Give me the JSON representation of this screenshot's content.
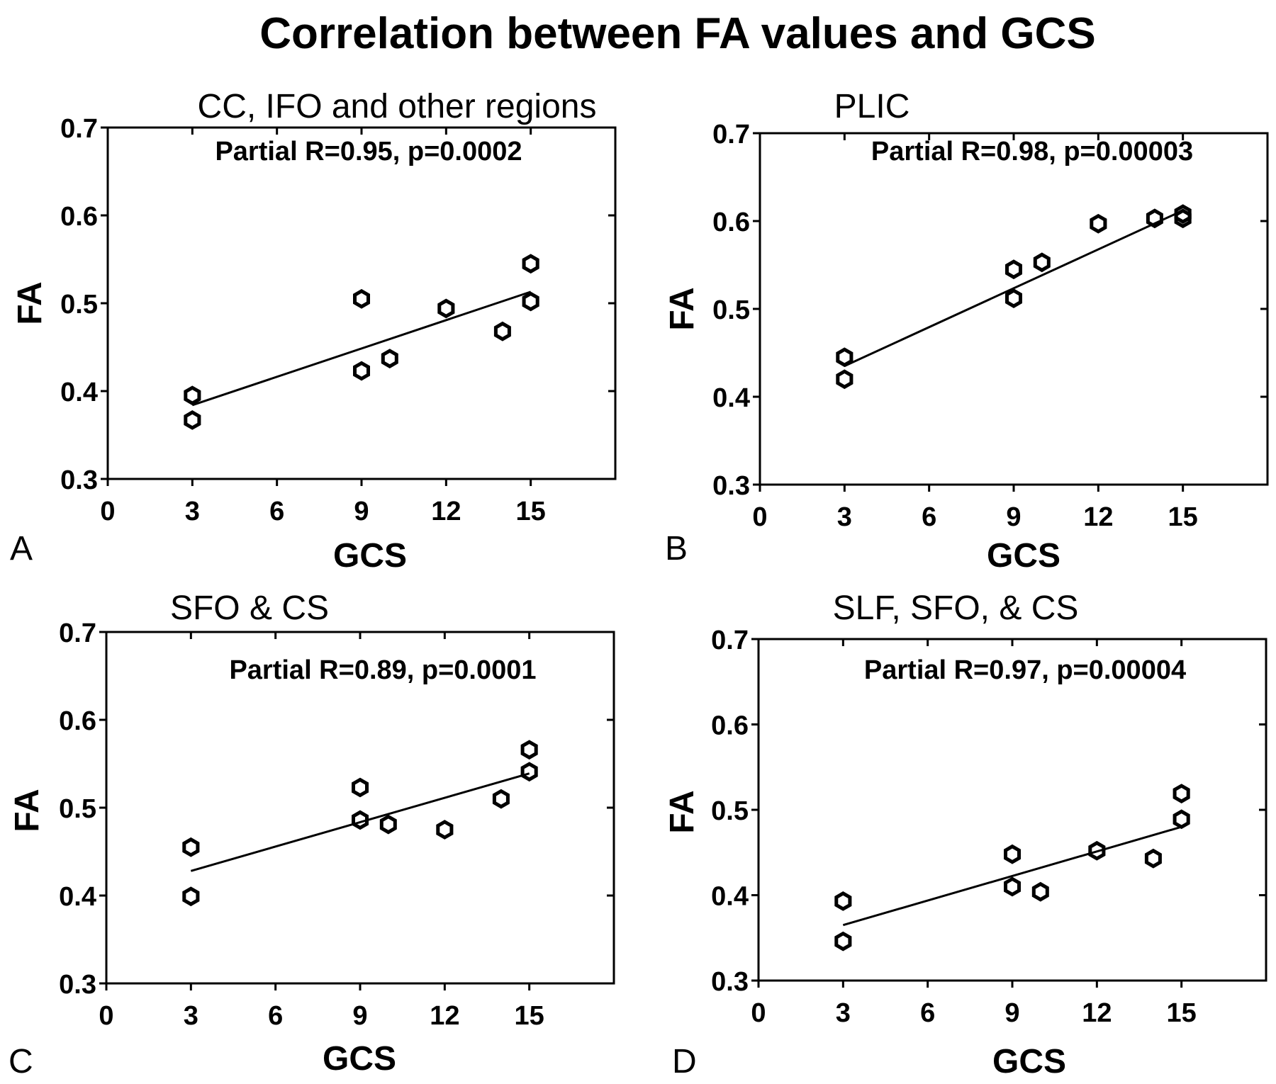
{
  "title": "Correlation between FA values and GCS",
  "chart_data": [
    {
      "type": "scatter",
      "panel_letter": "A",
      "title": "CC, IFO and other regions",
      "annotation": "Partial R=0.95, p=0.0002",
      "xlabel": "GCS",
      "ylabel": "FA",
      "xlim": [
        0,
        18
      ],
      "ylim": [
        0.3,
        0.7
      ],
      "xticks": [
        0,
        3,
        6,
        9,
        12,
        15
      ],
      "yticks": [
        0.3,
        0.4,
        0.5,
        0.6,
        0.7
      ],
      "points": [
        {
          "x": 3,
          "y": 0.395
        },
        {
          "x": 3,
          "y": 0.367
        },
        {
          "x": 9,
          "y": 0.505
        },
        {
          "x": 9,
          "y": 0.423
        },
        {
          "x": 10,
          "y": 0.437
        },
        {
          "x": 12,
          "y": 0.494
        },
        {
          "x": 14,
          "y": 0.468
        },
        {
          "x": 15,
          "y": 0.545
        },
        {
          "x": 15,
          "y": 0.502
        }
      ],
      "fit": {
        "x": [
          3,
          15
        ],
        "y": [
          0.384,
          0.513
        ]
      }
    },
    {
      "type": "scatter",
      "panel_letter": "B",
      "title": "PLIC",
      "annotation": "Partial R=0.98, p=0.00003",
      "xlabel": "GCS",
      "ylabel": "FA",
      "xlim": [
        0,
        18
      ],
      "ylim": [
        0.3,
        0.7
      ],
      "xticks": [
        0,
        3,
        6,
        9,
        12,
        15
      ],
      "yticks": [
        0.3,
        0.4,
        0.5,
        0.6,
        0.7
      ],
      "points": [
        {
          "x": 3,
          "y": 0.445
        },
        {
          "x": 3,
          "y": 0.42
        },
        {
          "x": 9,
          "y": 0.545
        },
        {
          "x": 9,
          "y": 0.512
        },
        {
          "x": 10,
          "y": 0.553
        },
        {
          "x": 12,
          "y": 0.597
        },
        {
          "x": 14,
          "y": 0.603
        },
        {
          "x": 15,
          "y": 0.608
        },
        {
          "x": 15,
          "y": 0.603
        }
      ],
      "fit": {
        "x": [
          3,
          15
        ],
        "y": [
          0.435,
          0.612
        ]
      }
    },
    {
      "type": "scatter",
      "panel_letter": "C",
      "title": "SFO & CS",
      "annotation": "Partial R=0.89, p=0.0001",
      "xlabel": "GCS",
      "ylabel": "FA",
      "xlim": [
        0,
        18
      ],
      "ylim": [
        0.3,
        0.7
      ],
      "xticks": [
        0,
        3,
        6,
        9,
        12,
        15
      ],
      "yticks": [
        0.3,
        0.4,
        0.5,
        0.6,
        0.7
      ],
      "points": [
        {
          "x": 3,
          "y": 0.455
        },
        {
          "x": 3,
          "y": 0.399
        },
        {
          "x": 9,
          "y": 0.523
        },
        {
          "x": 9,
          "y": 0.486
        },
        {
          "x": 10,
          "y": 0.481
        },
        {
          "x": 12,
          "y": 0.475
        },
        {
          "x": 14,
          "y": 0.51
        },
        {
          "x": 15,
          "y": 0.566
        },
        {
          "x": 15,
          "y": 0.541
        }
      ],
      "fit": {
        "x": [
          3,
          15
        ],
        "y": [
          0.428,
          0.539
        ]
      }
    },
    {
      "type": "scatter",
      "panel_letter": "D",
      "title": "SLF, SFO, & CS",
      "annotation": "Partial R=0.97, p=0.00004",
      "xlabel": "GCS",
      "ylabel": "FA",
      "xlim": [
        0,
        18
      ],
      "ylim": [
        0.3,
        0.7
      ],
      "xticks": [
        0,
        3,
        6,
        9,
        12,
        15
      ],
      "yticks": [
        0.3,
        0.4,
        0.5,
        0.6,
        0.7
      ],
      "points": [
        {
          "x": 3,
          "y": 0.393
        },
        {
          "x": 3,
          "y": 0.346
        },
        {
          "x": 9,
          "y": 0.448
        },
        {
          "x": 9,
          "y": 0.41
        },
        {
          "x": 10,
          "y": 0.404
        },
        {
          "x": 12,
          "y": 0.452
        },
        {
          "x": 14,
          "y": 0.443
        },
        {
          "x": 15,
          "y": 0.519
        },
        {
          "x": 15,
          "y": 0.489
        }
      ],
      "fit": {
        "x": [
          3,
          15
        ],
        "y": [
          0.365,
          0.48
        ]
      }
    }
  ]
}
